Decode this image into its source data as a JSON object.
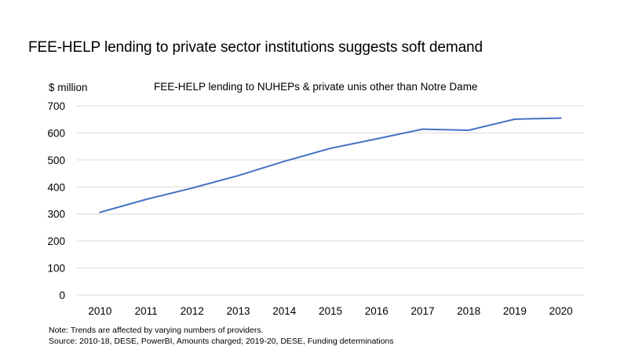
{
  "chart_data": {
    "type": "line",
    "title": "FEE-HELP lending to private sector institutions suggests soft demand",
    "subtitle": "FEE-HELP lending to NUHEPs & private unis other than Notre Dame",
    "ylabel": "$ million",
    "xlabel": "",
    "ylim": [
      0,
      700
    ],
    "yticks": [
      0,
      100,
      200,
      300,
      400,
      500,
      600,
      700
    ],
    "grid": true,
    "categories": [
      "2010",
      "2011",
      "2012",
      "2013",
      "2014",
      "2015",
      "2016",
      "2017",
      "2018",
      "2019",
      "2020"
    ],
    "series": [
      {
        "name": "FEE-HELP lending to NUHEPs & private unis other than Notre Dame",
        "color": "#4472c4",
        "values": [
          306,
          354,
          396,
          442,
          495,
          543,
          578,
          614,
          610,
          651,
          655
        ]
      }
    ]
  },
  "notes": {
    "line1": "Note: Trends are affected by varying numbers of providers.",
    "line2": "Source: 2010-18, DESE, PowerBI, Amounts charged; 2019-20, DESE, Funding determinations"
  }
}
